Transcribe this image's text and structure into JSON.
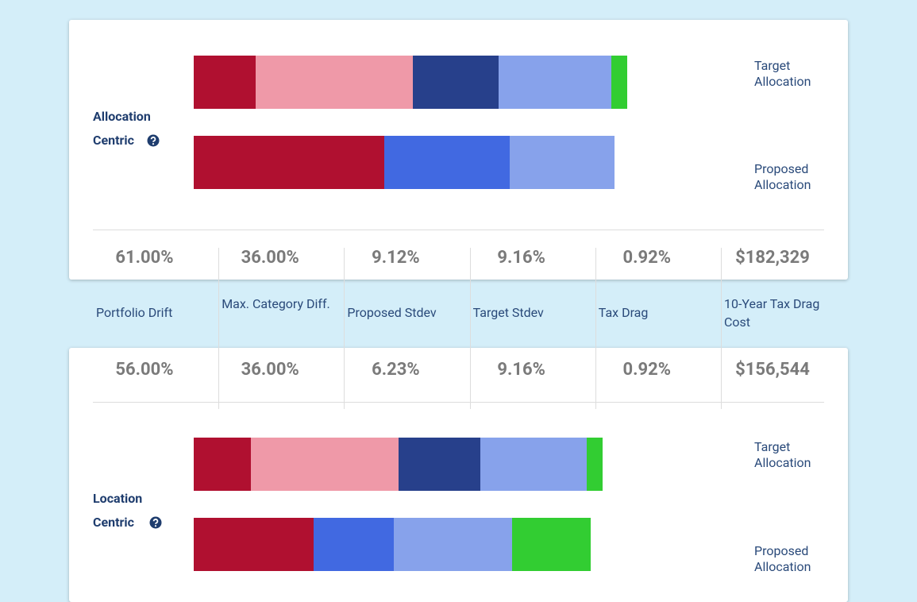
{
  "sections": [
    {
      "title": "Allocation Centric",
      "xlim": [
        0,
        100
      ],
      "bars": [
        {
          "label": "Target Allocation",
          "segments": [
            {
              "color": "#b01030",
              "value": 13
            },
            {
              "color": "#ef99a8",
              "value": 33
            },
            {
              "color": "#27408b",
              "value": 18
            },
            {
              "color": "#87a2eb",
              "value": 23.7
            },
            {
              "color": "#32cd32",
              "value": 3.3
            }
          ]
        },
        {
          "label": "Proposed Allocation",
          "segments": [
            {
              "color": "#b01030",
              "value": 40
            },
            {
              "color": "#4169e1",
              "value": 26.3
            },
            {
              "color": "#87a2eb",
              "value": 22
            }
          ]
        }
      ]
    },
    {
      "title": "Location Centric",
      "xlim": [
        0,
        100
      ],
      "bars": [
        {
          "label": "Target Allocation",
          "segments": [
            {
              "color": "#b01030",
              "value": 12
            },
            {
              "color": "#ef99a8",
              "value": 31
            },
            {
              "color": "#27408b",
              "value": 17.2
            },
            {
              "color": "#87a2eb",
              "value": 22.3
            },
            {
              "color": "#32cd32",
              "value": 3.3
            }
          ]
        },
        {
          "label": "Proposed Allocation",
          "segments": [
            {
              "color": "#b01030",
              "value": 25.2
            },
            {
              "color": "#4169e1",
              "value": 16.8
            },
            {
              "color": "#87a2eb",
              "value": 24.8
            },
            {
              "color": "#32cd32",
              "value": 16.5
            }
          ]
        }
      ]
    }
  ],
  "metrics": {
    "labels": [
      "Portfolio Drift",
      "Max. Category Diff.",
      "Proposed Stdev",
      "Target Stdev",
      "Tax Drag",
      "10-Year Tax Drag Cost"
    ],
    "rows": [
      [
        "61.00%",
        "36.00%",
        "9.12%",
        "9.16%",
        "0.92%",
        "$182,329"
      ],
      [
        "56.00%",
        "36.00%",
        "6.23%",
        "9.16%",
        "0.92%",
        "$156,544"
      ]
    ]
  }
}
